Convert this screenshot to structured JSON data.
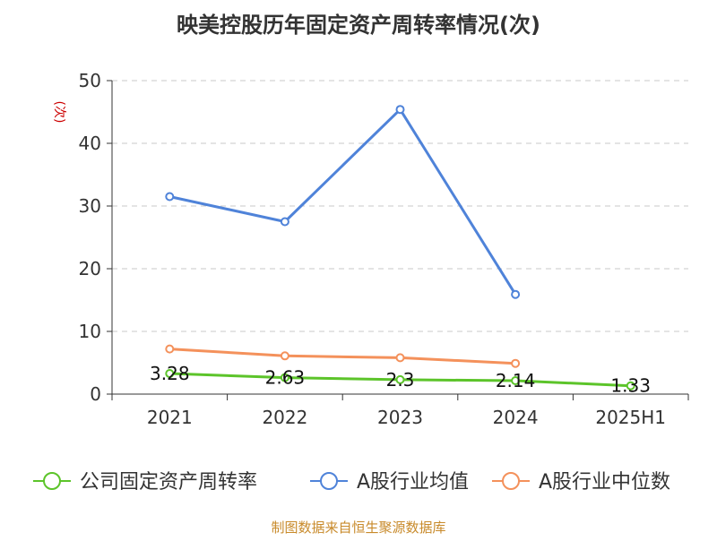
{
  "colors": {
    "company": "#5cc42a",
    "industry_avg": "#4f83d9",
    "industry_median": "#f4915b",
    "ylabel": "#cc0000",
    "source": "#c88a2a",
    "grid": "#c8c8c8",
    "axis": "#333333",
    "text": "#333333"
  },
  "source": "制图数据来自恒生聚源数据库",
  "chart_data": {
    "type": "line",
    "title": "映美控股历年固定资产周转率情况(次)",
    "ylabel": "(次)",
    "xlabel": "",
    "categories": [
      "2021",
      "2022",
      "2023",
      "2024",
      "2025H1"
    ],
    "ylim": [
      0,
      50
    ],
    "yticks": [
      0,
      10,
      20,
      30,
      40,
      50
    ],
    "grid": true,
    "legend_position": "bottom",
    "series": [
      {
        "name": "公司固定资产周转率",
        "values": [
          3.28,
          2.63,
          2.3,
          2.14,
          1.33
        ],
        "labels": [
          "3.28",
          "2.63",
          "2.3",
          "2.14",
          "1.33"
        ],
        "color_key": "company"
      },
      {
        "name": "A股行业均值",
        "values": [
          31.5,
          27.5,
          45.4,
          15.9,
          null
        ],
        "color_key": "industry_avg"
      },
      {
        "name": "A股行业中位数",
        "values": [
          7.2,
          6.1,
          5.8,
          4.9,
          null
        ],
        "color_key": "industry_median"
      }
    ]
  }
}
